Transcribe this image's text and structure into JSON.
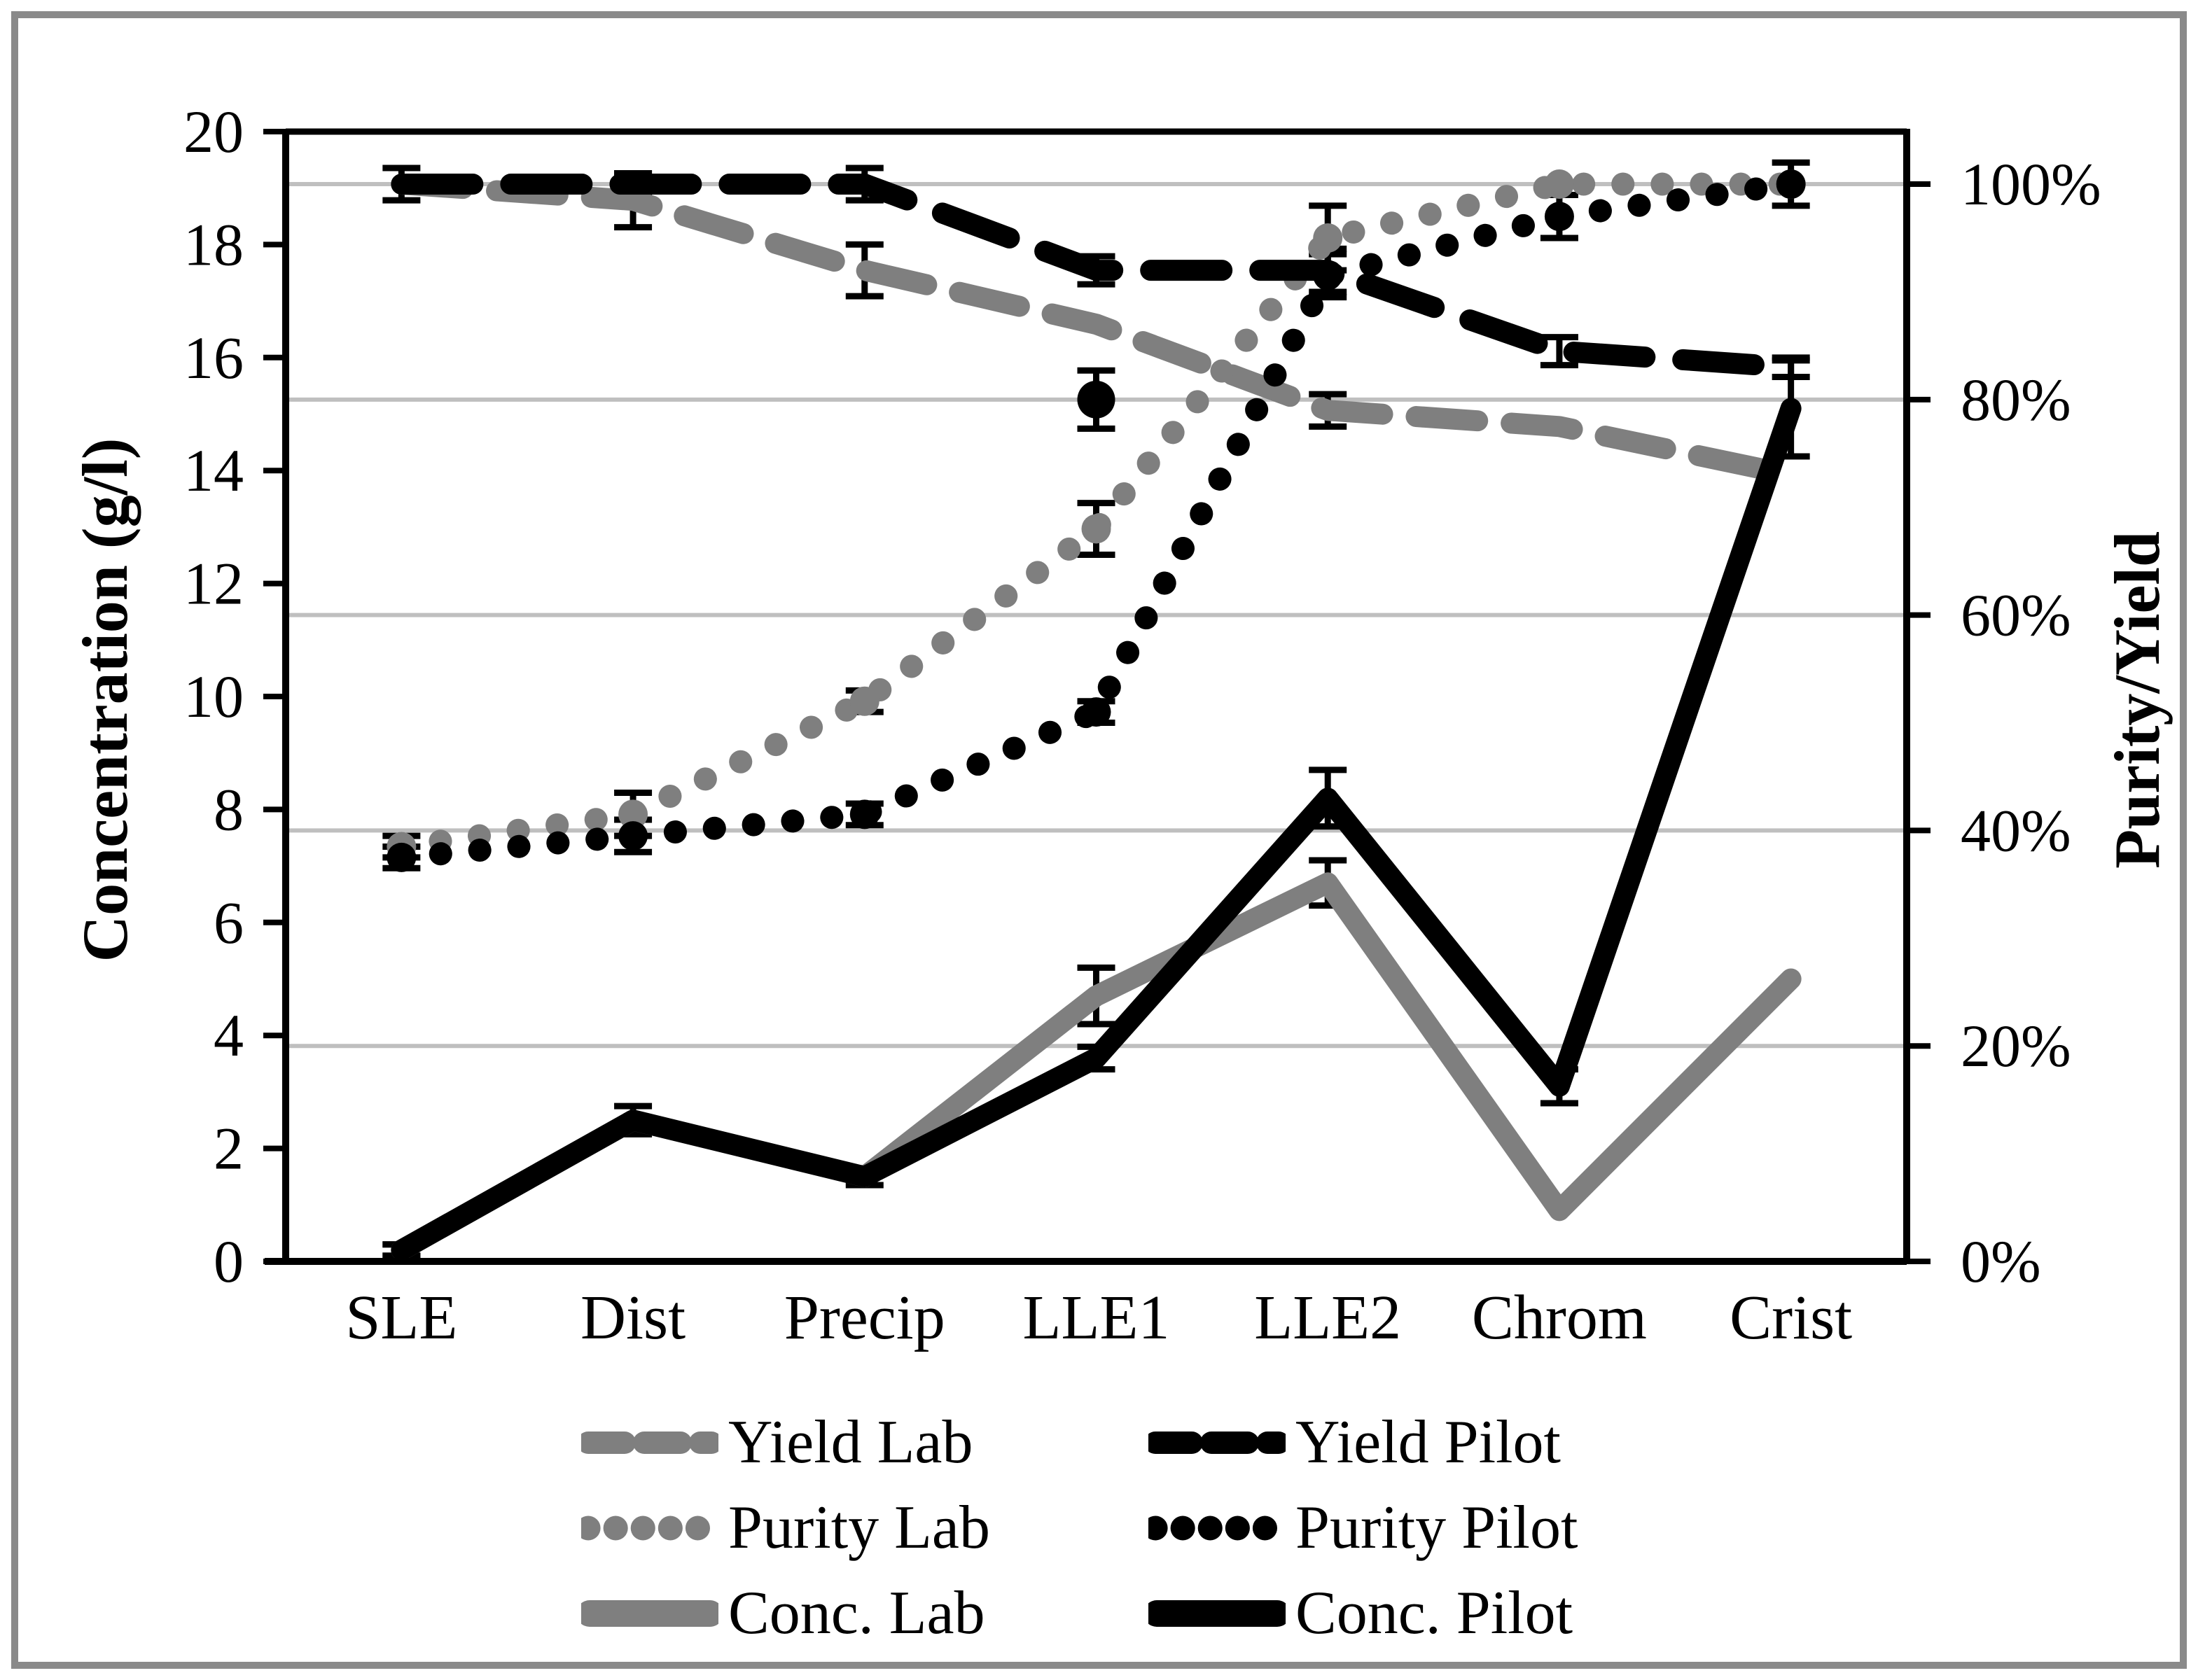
{
  "figure": {
    "background": "#FFFFFF",
    "frame_color": "#8A8A8A",
    "axis_color": "#000000"
  },
  "left_axis": {
    "title": "Concentration (g/l)",
    "tick_labels": [
      "0",
      "2",
      "4",
      "6",
      "8",
      "10",
      "12",
      "14",
      "16",
      "18",
      "20"
    ],
    "range": [
      0,
      20
    ]
  },
  "right_axis": {
    "title": "Purity/Yield",
    "tick_labels": [
      "0%",
      "20%",
      "40%",
      "60%",
      "80%",
      "100%"
    ],
    "range_percent": [
      0,
      100
    ],
    "units_per_percent": 0.1907
  },
  "chart_data": {
    "type": "line",
    "title": "",
    "xlabel": "",
    "categories": [
      "SLE",
      "Dist",
      "Precip",
      "LLE1",
      "LLE2",
      "Chrom",
      "Crist"
    ],
    "gridlines_percent": [
      20,
      40,
      60,
      80,
      100
    ],
    "gridline_color": "#BFBFBF",
    "error_bar_color": "#000000",
    "legend_position": "bottom",
    "series": [
      {
        "name": "Yield Lab",
        "axis": "right",
        "unit": "%",
        "style": "dashed",
        "color": "#7F7F7F",
        "values": [
          100,
          98.5,
          92,
          87,
          79,
          77.5,
          73
        ],
        "errors": [
          0,
          2.5,
          2.4,
          0,
          1.5,
          0,
          0
        ]
      },
      {
        "name": "Yield Pilot",
        "axis": "right",
        "unit": "%",
        "style": "dashed",
        "color": "#000000",
        "values": [
          100,
          100,
          100,
          92,
          92,
          84.5,
          83
        ],
        "errors": [
          1.5,
          1,
          1.5,
          1.3,
          2,
          1.3,
          0.9
        ]
      },
      {
        "name": "Purity Lab",
        "axis": "right",
        "unit": "%",
        "style": "dotted",
        "color": "#7F7F7F",
        "values": [
          38.5,
          41.5,
          52,
          68,
          95,
          100,
          100
        ],
        "errors": [
          1,
          2,
          1,
          2.4,
          3,
          0,
          0
        ]
      },
      {
        "name": "Purity Pilot",
        "axis": "right",
        "unit": "%",
        "style": "dotted",
        "color": "#000000",
        "values": [
          37.5,
          39.5,
          41.5,
          51,
          91.5,
          97,
          100
        ],
        "errors": [
          1,
          1.5,
          1,
          1,
          2,
          2,
          2
        ]
      },
      {
        "name": "Conc. Lab",
        "axis": "left",
        "unit": "g/l",
        "style": "solid",
        "color": "#7F7F7F",
        "values": [
          0.2,
          2.5,
          1.5,
          4.7,
          6.7,
          0.9,
          5.0
        ],
        "errors": [
          0.1,
          0,
          0,
          0.5,
          0.4,
          0,
          0
        ]
      },
      {
        "name": "Conc. Pilot",
        "axis": "left",
        "unit": "g/l",
        "style": "solid",
        "color": "#000000",
        "values": [
          0.2,
          2.5,
          1.5,
          3.6,
          8.2,
          3.1,
          15.1
        ],
        "errors": [
          0.1,
          0.25,
          0.15,
          0.2,
          0.5,
          0.3,
          0.85
        ]
      }
    ],
    "isolated_point": {
      "category": "LLE1",
      "unit": "%",
      "value": 80,
      "error": 2.7,
      "color": "#000000"
    }
  }
}
